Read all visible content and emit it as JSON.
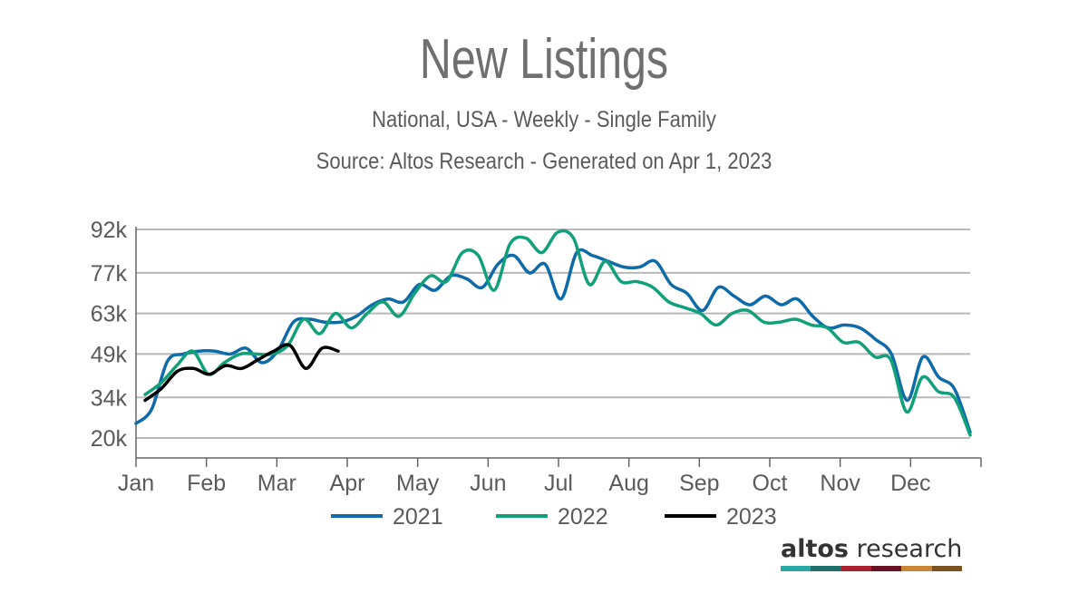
{
  "chart_data": {
    "type": "line",
    "title": "New Listings",
    "subtitle": "National, USA - Weekly - Single Family",
    "source": "Source: Altos Research - Generated on Apr 1, 2023",
    "xlabel": "",
    "ylabel": "",
    "x_ticks": [
      "Jan",
      "Feb",
      "Mar",
      "Apr",
      "May",
      "Jun",
      "Jul",
      "Aug",
      "Sep",
      "Oct",
      "Nov",
      "Dec"
    ],
    "y_ticks": [
      "20k",
      "34k",
      "49k",
      "63k",
      "77k",
      "92k"
    ],
    "y_tick_values": [
      20000,
      34000,
      49000,
      63000,
      77000,
      92000
    ],
    "ylim": [
      20000,
      92000
    ],
    "xlim_weeks": [
      1,
      52
    ],
    "grid": "horizontal",
    "legend_position": "bottom",
    "series": [
      {
        "name": "2021",
        "color": "#0e6ba8",
        "start_week": 1,
        "values": [
          25000,
          30000,
          46500,
          49000,
          50000,
          50000,
          49000,
          51000,
          46000,
          50000,
          60000,
          61000,
          60000,
          60000,
          62000,
          66000,
          68000,
          67000,
          73000,
          71000,
          76000,
          75000,
          72000,
          80000,
          83000,
          77000,
          80000,
          68000,
          84000,
          83000,
          81000,
          79000,
          79000,
          81000,
          73000,
          70000,
          64000,
          72000,
          69000,
          66000,
          69000,
          66000,
          68000,
          62000,
          58000,
          59000,
          58000,
          54000,
          49000,
          33000,
          48000,
          41000,
          37000,
          22000
        ]
      },
      {
        "name": "2022",
        "color": "#12a07a",
        "start_week": 1,
        "values": [
          35000,
          39000,
          45000,
          50000,
          42000,
          46000,
          49000,
          49000,
          49000,
          52000,
          61000,
          56000,
          63000,
          58000,
          63000,
          67000,
          62000,
          70000,
          76000,
          74000,
          84000,
          83000,
          71000,
          87000,
          89000,
          84000,
          91000,
          89000,
          73000,
          81000,
          74000,
          74000,
          72000,
          67000,
          65000,
          63000,
          59000,
          63000,
          64000,
          60000,
          60000,
          61000,
          59000,
          58000,
          53000,
          53000,
          48000,
          47000,
          29000,
          41000,
          36000,
          34000,
          21000
        ]
      },
      {
        "name": "2023",
        "color": "#000000",
        "start_week": 1,
        "values": [
          33000,
          37000,
          43000,
          44000,
          42000,
          45000,
          44000,
          47000,
          50000,
          52000,
          44000,
          51000,
          50000
        ]
      }
    ]
  },
  "legend": [
    "2021",
    "2022",
    "2023"
  ],
  "branding": {
    "logo_bold": "altos",
    "logo_regular": "research",
    "logo_colors": [
      "#28a9a6",
      "#1f6f6b",
      "#a8232f",
      "#6b1222",
      "#c98634",
      "#7a5320"
    ]
  }
}
